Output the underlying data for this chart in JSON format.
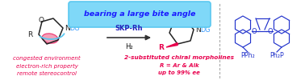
{
  "bg_color": "#ffffff",
  "box_text": "bearing a large bite angle",
  "box_bg": "#7fd8f8",
  "box_edge": "#5bc8f0",
  "skp_rh_text": "SKP-Rh",
  "h2_text": "H₂",
  "arrow_color": "#333333",
  "skp_text_color": "#2222bb",
  "h2_color": "#111111",
  "left_labels": [
    "congested environment",
    "electron-rich property",
    "remote stereocontrol"
  ],
  "left_label_color": "#e8004d",
  "right_labels": [
    "2-substituted chiral morpholines",
    "R = Ar & Alk",
    "up to 99% ee"
  ],
  "right_label_color": "#e8004d",
  "dg_color": "#3399ff",
  "r_color_right": "#e8004d",
  "wedge_color": "#e8004d",
  "blue_arc": "#5bc8f0",
  "dashed_line_color": "#aaaaaa",
  "skp_blue": "#2233cc",
  "figsize": [
    3.78,
    1.05
  ],
  "dpi": 100
}
